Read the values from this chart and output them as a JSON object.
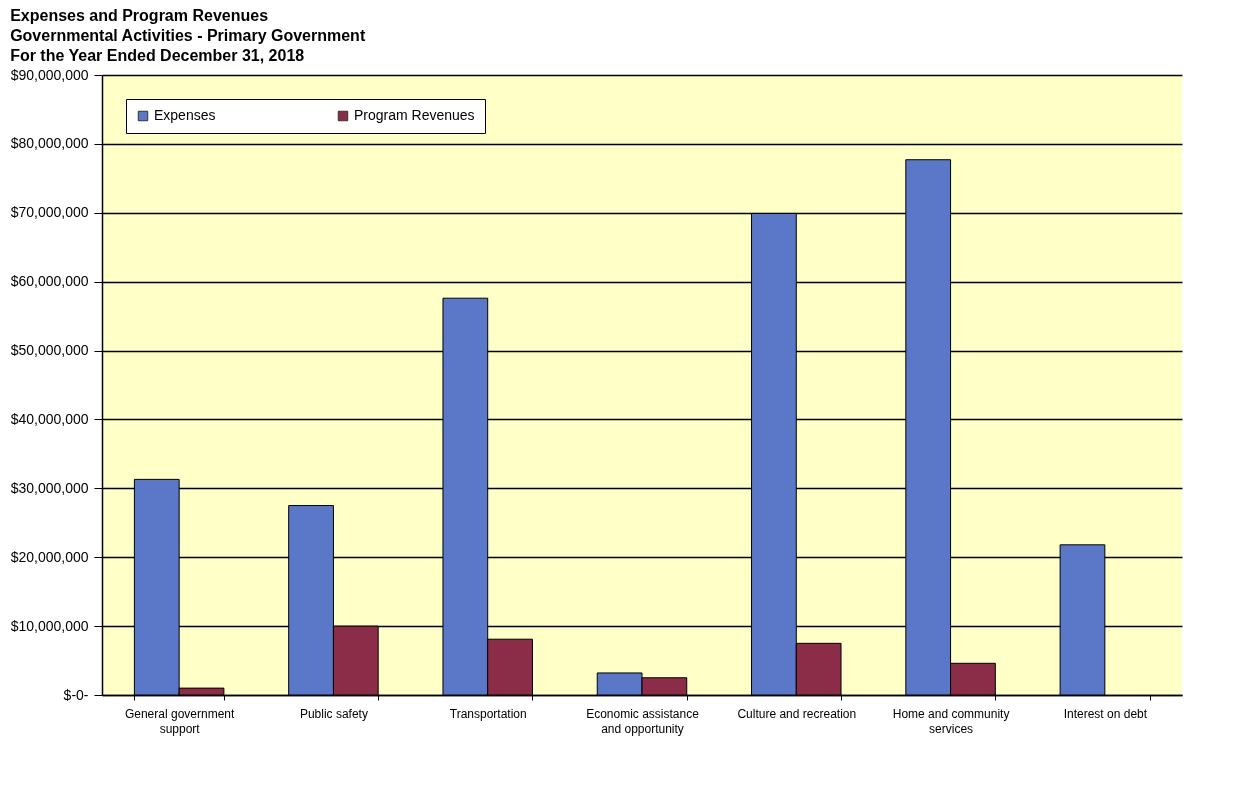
{
  "chart_data": {
    "type": "bar",
    "title": "Expenses and Program Revenues",
    "subtitle": "Governmental Activities - Primary Government\nFor the Year Ended December 31, 2018",
    "categories": [
      "General government support",
      "Public safety",
      "Transportation",
      "Economic assistance and opportunity",
      "Culture and recreation",
      "Home and community services",
      "Interest on debt"
    ],
    "series": [
      {
        "name": "Expenses",
        "color": "#5b78c8",
        "values": [
          31300000,
          27500000,
          57600000,
          3200000,
          69900000,
          77700000,
          21800000
        ]
      },
      {
        "name": "Program Revenues",
        "color": "#8b2c48",
        "values": [
          1000000,
          10000000,
          8100000,
          2500000,
          7500000,
          4600000,
          null
        ]
      }
    ],
    "ylim": [
      0,
      90000000
    ],
    "yticks": [
      {
        "value": 0,
        "label": "$-0-"
      },
      {
        "value": 10000000,
        "label": "$10,000,000"
      },
      {
        "value": 20000000,
        "label": "$20,000,000"
      },
      {
        "value": 30000000,
        "label": "$30,000,000"
      },
      {
        "value": 40000000,
        "label": "$40,000,000"
      },
      {
        "value": 50000000,
        "label": "$50,000,000"
      },
      {
        "value": 60000000,
        "label": "$60,000,000"
      },
      {
        "value": 70000000,
        "label": "$70,000,000"
      },
      {
        "value": 80000000,
        "label": "$80,000,000"
      },
      {
        "value": 90000000,
        "label": "$90,000,000"
      }
    ],
    "grid": "y",
    "legend": "top left"
  }
}
